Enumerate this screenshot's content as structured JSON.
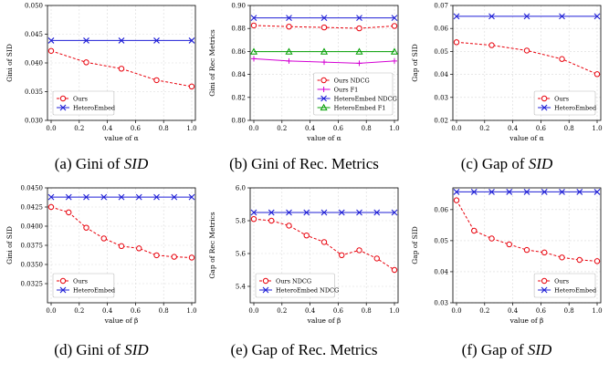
{
  "colors": {
    "ours": "#e8000b",
    "hetero": "#1f1fd6",
    "f1": "#d400d4",
    "hetero_f1": "#009e00"
  },
  "chart_data": [
    {
      "type": "line",
      "id": "a",
      "caption": {
        "prefix": "(a) Gini of ",
        "italic": "SID"
      },
      "xlabel": "value of α",
      "ylabel": "Gini of SID",
      "x": [
        0.0,
        0.25,
        0.5,
        0.75,
        1.0
      ],
      "xlim": [
        0,
        1
      ],
      "xticks": [
        0.0,
        0.2,
        0.4,
        0.6,
        0.8,
        1.0
      ],
      "xtick_labels": [
        "0.0",
        "0.2",
        "0.4",
        "0.6",
        "0.8",
        "1.0"
      ],
      "ylim": [
        0.03,
        0.05
      ],
      "yticks": [
        0.03,
        0.035,
        0.04,
        0.045,
        0.05
      ],
      "ytick_labels": [
        "0.030",
        "0.035",
        "0.040",
        "0.045",
        "0.050"
      ],
      "grid": true,
      "legend_position": "lower-left",
      "series": [
        {
          "name": "Ours",
          "color_key": "ours",
          "marker": "circle",
          "dashed": true,
          "values": [
            0.0421,
            0.0401,
            0.039,
            0.037,
            0.0359
          ]
        },
        {
          "name": "HeteroEmbed",
          "color_key": "hetero",
          "marker": "x",
          "dashed": false,
          "values": [
            0.0439,
            0.0439,
            0.0439,
            0.0439,
            0.0439
          ]
        }
      ]
    },
    {
      "type": "line",
      "id": "b",
      "caption": {
        "prefix": "(b) Gini of Rec. Metrics",
        "italic": ""
      },
      "xlabel": "value of α",
      "ylabel": "Gini of Rec Metrics",
      "x": [
        0.0,
        0.25,
        0.5,
        0.75,
        1.0
      ],
      "xlim": [
        0,
        1
      ],
      "xticks": [
        0.0,
        0.2,
        0.4,
        0.6,
        0.8,
        1.0
      ],
      "xtick_labels": [
        "0.0",
        "0.2",
        "0.4",
        "0.6",
        "0.8",
        "1.0"
      ],
      "ylim": [
        0.8,
        0.9
      ],
      "yticks": [
        0.8,
        0.82,
        0.84,
        0.86,
        0.88,
        0.9
      ],
      "ytick_labels": [
        "0.80",
        "0.82",
        "0.84",
        "0.86",
        "0.88",
        "0.90"
      ],
      "grid": true,
      "legend_position": "lower-right",
      "series": [
        {
          "name": "Ours NDCG",
          "color_key": "ours",
          "marker": "circle",
          "dashed": true,
          "values": [
            0.8826,
            0.8816,
            0.8809,
            0.8801,
            0.8822
          ]
        },
        {
          "name": "Ours F1",
          "color_key": "f1",
          "marker": "plus",
          "dashed": false,
          "values": [
            0.8537,
            0.8517,
            0.8507,
            0.8497,
            0.8517
          ]
        },
        {
          "name": "HeteroEmbed NDCG",
          "color_key": "hetero",
          "marker": "x",
          "dashed": false,
          "values": [
            0.8892,
            0.8892,
            0.8892,
            0.8892,
            0.8892
          ]
        },
        {
          "name": "HeteroEmbed F1",
          "color_key": "hetero_f1",
          "marker": "triangle",
          "dashed": false,
          "values": [
            0.8598,
            0.8598,
            0.8598,
            0.8598,
            0.8598
          ]
        }
      ]
    },
    {
      "type": "line",
      "id": "c",
      "caption": {
        "prefix": "(c) Gap of ",
        "italic": "SID"
      },
      "xlabel": "value of α",
      "ylabel": "Gap of SID",
      "x": [
        0.0,
        0.25,
        0.5,
        0.75,
        1.0
      ],
      "xlim": [
        0,
        1
      ],
      "xticks": [
        0.0,
        0.2,
        0.4,
        0.6,
        0.8,
        1.0
      ],
      "xtick_labels": [
        "0.0",
        "0.2",
        "0.4",
        "0.6",
        "0.8",
        "1.0"
      ],
      "ylim": [
        0.02,
        0.07
      ],
      "yticks": [
        0.02,
        0.03,
        0.04,
        0.05,
        0.06,
        0.07
      ],
      "ytick_labels": [
        "0.02",
        "0.03",
        "0.04",
        "0.05",
        "0.06",
        "0.07"
      ],
      "grid": true,
      "legend_position": "lower-right",
      "series": [
        {
          "name": "Ours",
          "color_key": "ours",
          "marker": "circle",
          "dashed": true,
          "values": [
            0.054,
            0.0527,
            0.0504,
            0.0467,
            0.0401
          ]
        },
        {
          "name": "HeteroEmbed",
          "color_key": "hetero",
          "marker": "x",
          "dashed": false,
          "values": [
            0.0653,
            0.0653,
            0.0653,
            0.0653,
            0.0653
          ]
        }
      ]
    },
    {
      "type": "line",
      "id": "d",
      "caption": {
        "prefix": "(d) Gini of ",
        "italic": "SID"
      },
      "xlabel": "value of β",
      "ylabel": "Gini of SID",
      "x": [
        0.0,
        0.125,
        0.25,
        0.375,
        0.5,
        0.625,
        0.75,
        0.875,
        1.0
      ],
      "xlim": [
        0,
        1
      ],
      "xticks": [
        0.0,
        0.2,
        0.4,
        0.6,
        0.8,
        1.0
      ],
      "xtick_labels": [
        "0.0",
        "0.2",
        "0.4",
        "0.6",
        "0.8",
        "1.0"
      ],
      "ylim": [
        0.03,
        0.045
      ],
      "yticks": [
        0.0325,
        0.035,
        0.0375,
        0.04,
        0.0425,
        0.045
      ],
      "ytick_labels": [
        "0.0325",
        "0.0350",
        "0.0375",
        "0.0400",
        "0.0425",
        "0.0450"
      ],
      "grid": true,
      "legend_position": "lower-left",
      "series": [
        {
          "name": "Ours",
          "color_key": "ours",
          "marker": "circle",
          "dashed": true,
          "values": [
            0.0425,
            0.0418,
            0.0398,
            0.0384,
            0.0374,
            0.0371,
            0.0362,
            0.036,
            0.0359
          ]
        },
        {
          "name": "HeteroEmbed",
          "color_key": "hetero",
          "marker": "x",
          "dashed": false,
          "values": [
            0.0438,
            0.0438,
            0.0438,
            0.0438,
            0.0438,
            0.0438,
            0.0438,
            0.0438,
            0.0438
          ]
        }
      ]
    },
    {
      "type": "line",
      "id": "e",
      "caption": {
        "prefix": "(e) Gap of Rec. Metrics",
        "italic": ""
      },
      "xlabel": "value of β",
      "ylabel": "Gap of Rec Metrics",
      "x": [
        0.0,
        0.125,
        0.25,
        0.375,
        0.5,
        0.625,
        0.75,
        0.875,
        1.0
      ],
      "xlim": [
        0,
        1
      ],
      "xticks": [
        0.0,
        0.2,
        0.4,
        0.6,
        0.8,
        1.0
      ],
      "xtick_labels": [
        "0.0",
        "0.2",
        "0.4",
        "0.6",
        "0.8",
        "1.0"
      ],
      "ylim": [
        5.3,
        6.0
      ],
      "yticks": [
        5.4,
        5.6,
        5.8,
        6.0
      ],
      "ytick_labels": [
        "5.4",
        "5.6",
        "5.8",
        "6.0"
      ],
      "grid": true,
      "legend_position": "lower-left",
      "series": [
        {
          "name": "Ours NDCG",
          "color_key": "ours",
          "marker": "circle",
          "dashed": true,
          "values": [
            5.81,
            5.8,
            5.77,
            5.71,
            5.67,
            5.59,
            5.62,
            5.57,
            5.5
          ]
        },
        {
          "name": "HeteroEmbed NDCG",
          "color_key": "hetero",
          "marker": "x",
          "dashed": false,
          "values": [
            5.85,
            5.85,
            5.85,
            5.85,
            5.85,
            5.85,
            5.85,
            5.85,
            5.85
          ]
        }
      ]
    },
    {
      "type": "line",
      "id": "f",
      "caption": {
        "prefix": "(f) Gap of ",
        "italic": "SID"
      },
      "xlabel": "value of β",
      "ylabel": "Gap of SID",
      "x": [
        0.0,
        0.125,
        0.25,
        0.375,
        0.5,
        0.625,
        0.75,
        0.875,
        1.0
      ],
      "xlim": [
        0,
        1
      ],
      "xticks": [
        0.0,
        0.2,
        0.4,
        0.6,
        0.8,
        1.0
      ],
      "xtick_labels": [
        "0.0",
        "0.2",
        "0.4",
        "0.6",
        "0.8",
        "1.0"
      ],
      "ylim": [
        0.03,
        0.067
      ],
      "yticks": [
        0.03,
        0.04,
        0.05,
        0.06
      ],
      "ytick_labels": [
        "0.03",
        "0.04",
        "0.05",
        "0.06"
      ],
      "grid": true,
      "legend_position": "lower-right",
      "series": [
        {
          "name": "Ours",
          "color_key": "ours",
          "marker": "circle",
          "dashed": true,
          "values": [
            0.063,
            0.0532,
            0.0507,
            0.0488,
            0.047,
            0.0462,
            0.0446,
            0.0438,
            0.0434
          ]
        },
        {
          "name": "HeteroEmbed",
          "color_key": "hetero",
          "marker": "x",
          "dashed": false,
          "values": [
            0.0657,
            0.0657,
            0.0657,
            0.0657,
            0.0657,
            0.0657,
            0.0657,
            0.0657,
            0.0657
          ]
        }
      ]
    }
  ]
}
